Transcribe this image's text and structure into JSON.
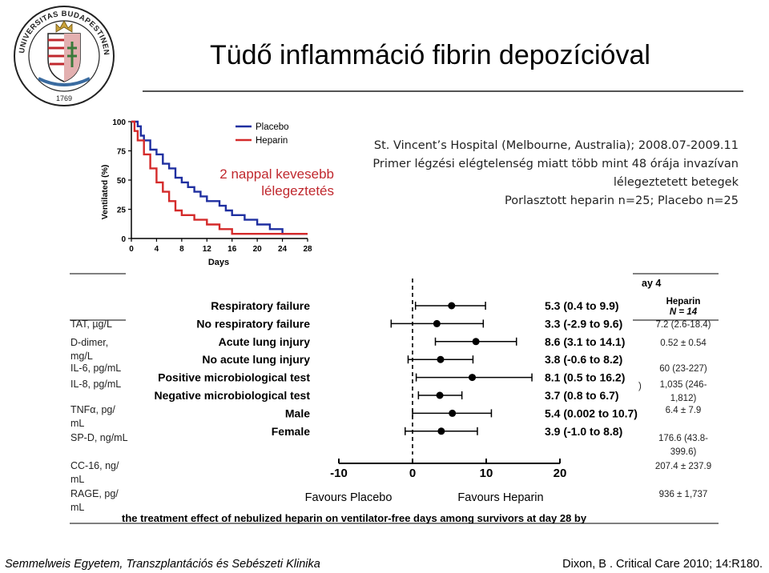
{
  "title": "Tüdő inflammáció fibrin depozícióval",
  "seal": {
    "ring_text": "UNIVERSITAS BUDAPESTINENSIS DE SEMMELWEIS NOMINATA",
    "year": "1769"
  },
  "info_lines": [
    "St. Vincent’s Hospital (Melbourne, Australia);  2008.07-2009.11",
    "Primer légzési elégtelenség miatt több mint 48 órája invazívan",
    "lélegeztetett betegek",
    "Porlasztott heparin n=25; Placebo n=25"
  ],
  "km_note": [
    "2 nappal kevesebb",
    "lélegeztetés"
  ],
  "footer": {
    "left": "Semmelweis Egyetem, Transzplantációs és Sebészeti Klinika",
    "right": "Dixon, B . Critical Care 2010; 14:R180."
  },
  "colors": {
    "placebo": "#1f2fa0",
    "heparin": "#d42a2a",
    "accent_red": "#c0282e"
  },
  "chart_data": [
    {
      "type": "line",
      "subtype": "kaplan-meier-step",
      "xlabel": "Days",
      "ylabel": "Ventilated (%)",
      "xticks": [
        0,
        4,
        8,
        12,
        16,
        20,
        24,
        28
      ],
      "yticks": [
        0,
        25,
        50,
        75,
        100
      ],
      "xlim": [
        0,
        28
      ],
      "ylim": [
        0,
        100
      ],
      "legend": "top-right",
      "series": [
        {
          "name": "Placebo",
          "color": "#1f2fa0",
          "points": [
            [
              0,
              100
            ],
            [
              1,
              100
            ],
            [
              1,
              96
            ],
            [
              1.5,
              96
            ],
            [
              1.5,
              88
            ],
            [
              2,
              88
            ],
            [
              2,
              84
            ],
            [
              3,
              84
            ],
            [
              3,
              76
            ],
            [
              4,
              76
            ],
            [
              4,
              72
            ],
            [
              5,
              72
            ],
            [
              5,
              64
            ],
            [
              6,
              64
            ],
            [
              6,
              60
            ],
            [
              7,
              60
            ],
            [
              7,
              52
            ],
            [
              8,
              52
            ],
            [
              8,
              48
            ],
            [
              9,
              48
            ],
            [
              9,
              44
            ],
            [
              10,
              44
            ],
            [
              10,
              40
            ],
            [
              11,
              40
            ],
            [
              11,
              36
            ],
            [
              12,
              36
            ],
            [
              12,
              32
            ],
            [
              14,
              32
            ],
            [
              14,
              28
            ],
            [
              15,
              28
            ],
            [
              15,
              24
            ],
            [
              16,
              24
            ],
            [
              16,
              20
            ],
            [
              18,
              20
            ],
            [
              18,
              16
            ],
            [
              20,
              16
            ],
            [
              20,
              12
            ],
            [
              22,
              12
            ],
            [
              22,
              8
            ],
            [
              24,
              8
            ],
            [
              24,
              4
            ],
            [
              28,
              4
            ]
          ]
        },
        {
          "name": "Heparin",
          "color": "#d42a2a",
          "points": [
            [
              0,
              100
            ],
            [
              0.5,
              100
            ],
            [
              0.5,
              92
            ],
            [
              1,
              92
            ],
            [
              1,
              84
            ],
            [
              2,
              84
            ],
            [
              2,
              72
            ],
            [
              3,
              72
            ],
            [
              3,
              60
            ],
            [
              4,
              60
            ],
            [
              4,
              48
            ],
            [
              5,
              48
            ],
            [
              5,
              40
            ],
            [
              6,
              40
            ],
            [
              6,
              32
            ],
            [
              7,
              32
            ],
            [
              7,
              24
            ],
            [
              8,
              24
            ],
            [
              8,
              20
            ],
            [
              10,
              20
            ],
            [
              10,
              16
            ],
            [
              12,
              16
            ],
            [
              12,
              12
            ],
            [
              14,
              12
            ],
            [
              14,
              8
            ],
            [
              16,
              8
            ],
            [
              16,
              4
            ],
            [
              28,
              4
            ]
          ]
        }
      ]
    },
    {
      "type": "forest",
      "xlim": [
        -10,
        20
      ],
      "xticks": [
        -10,
        0,
        10,
        20
      ],
      "reference_line": 0,
      "xlabel_left": "Favours Placebo",
      "xlabel_right": "Favours Heparin",
      "caption": "the treatment effect of nebulized heparin on ventilator-free days among survivors at day 28 by",
      "rows": [
        {
          "label": "Respiratory failure",
          "estimate": 5.3,
          "low": 0.4,
          "high": 9.9,
          "ci_text": "5.3 (0.4 to 9.9)"
        },
        {
          "label": "No respiratory failure",
          "estimate": 3.3,
          "low": -2.9,
          "high": 9.6,
          "ci_text": "3.3 (-2.9 to 9.6)"
        },
        {
          "label": "Acute lung injury",
          "estimate": 8.6,
          "low": 3.1,
          "high": 14.1,
          "ci_text": "8.6 (3.1 to 14.1)"
        },
        {
          "label": "No acute lung injury",
          "estimate": 3.8,
          "low": -0.6,
          "high": 8.2,
          "ci_text": "3.8 (-0.6 to 8.2)"
        },
        {
          "label": "Positive microbiological  test",
          "estimate": 8.1,
          "low": 0.5,
          "high": 16.2,
          "ci_text": "8.1 (0.5 to 16.2)"
        },
        {
          "label": "Negative microbiological  test",
          "estimate": 3.7,
          "low": 0.8,
          "high": 6.7,
          "ci_text": "3.7 (0.8 to 6.7)"
        },
        {
          "label": "Male",
          "estimate": 5.4,
          "low": 0.002,
          "high": 10.7,
          "ci_text": "5.4 (0.002 to 10.7)"
        },
        {
          "label": "Female",
          "estimate": 3.9,
          "low": -1.0,
          "high": 8.8,
          "ci_text": "3.9 (-1.0 to 8.8)"
        }
      ]
    },
    {
      "type": "table",
      "header_fragment": "ay 4",
      "column_header": [
        "Heparin",
        "N = 14"
      ],
      "rows": [
        {
          "label": [
            "TAT, µg/L"
          ],
          "heparin": [
            "7.2 (2.6-18.4)"
          ]
        },
        {
          "label": [
            "D-dimer,",
            "mg/L"
          ],
          "heparin": [
            "0.52 ± 0.54"
          ]
        },
        {
          "label": [
            "IL-6, pg/mL"
          ],
          "heparin": [
            "60 (23-227)"
          ]
        },
        {
          "label": [
            "IL-8, pg/mL"
          ],
          "heparin": [
            "1,035 (246-",
            "1,812)"
          ]
        },
        {
          "label": [
            "TNFα, pg/",
            "mL"
          ],
          "heparin": [
            "6.4 ± 7.9"
          ]
        },
        {
          "label": [
            "SP-D, ng/mL"
          ],
          "heparin": [
            "176.6 (43.8-",
            "399.6)"
          ]
        },
        {
          "label": [
            "CC-16, ng/",
            "mL"
          ],
          "heparin": [
            "207.4 ± 237.9"
          ]
        },
        {
          "label": [
            "RAGE, pg/",
            "mL"
          ],
          "heparin": [
            "936 ± 1,737"
          ]
        }
      ],
      "stray_fragment": ")"
    }
  ]
}
